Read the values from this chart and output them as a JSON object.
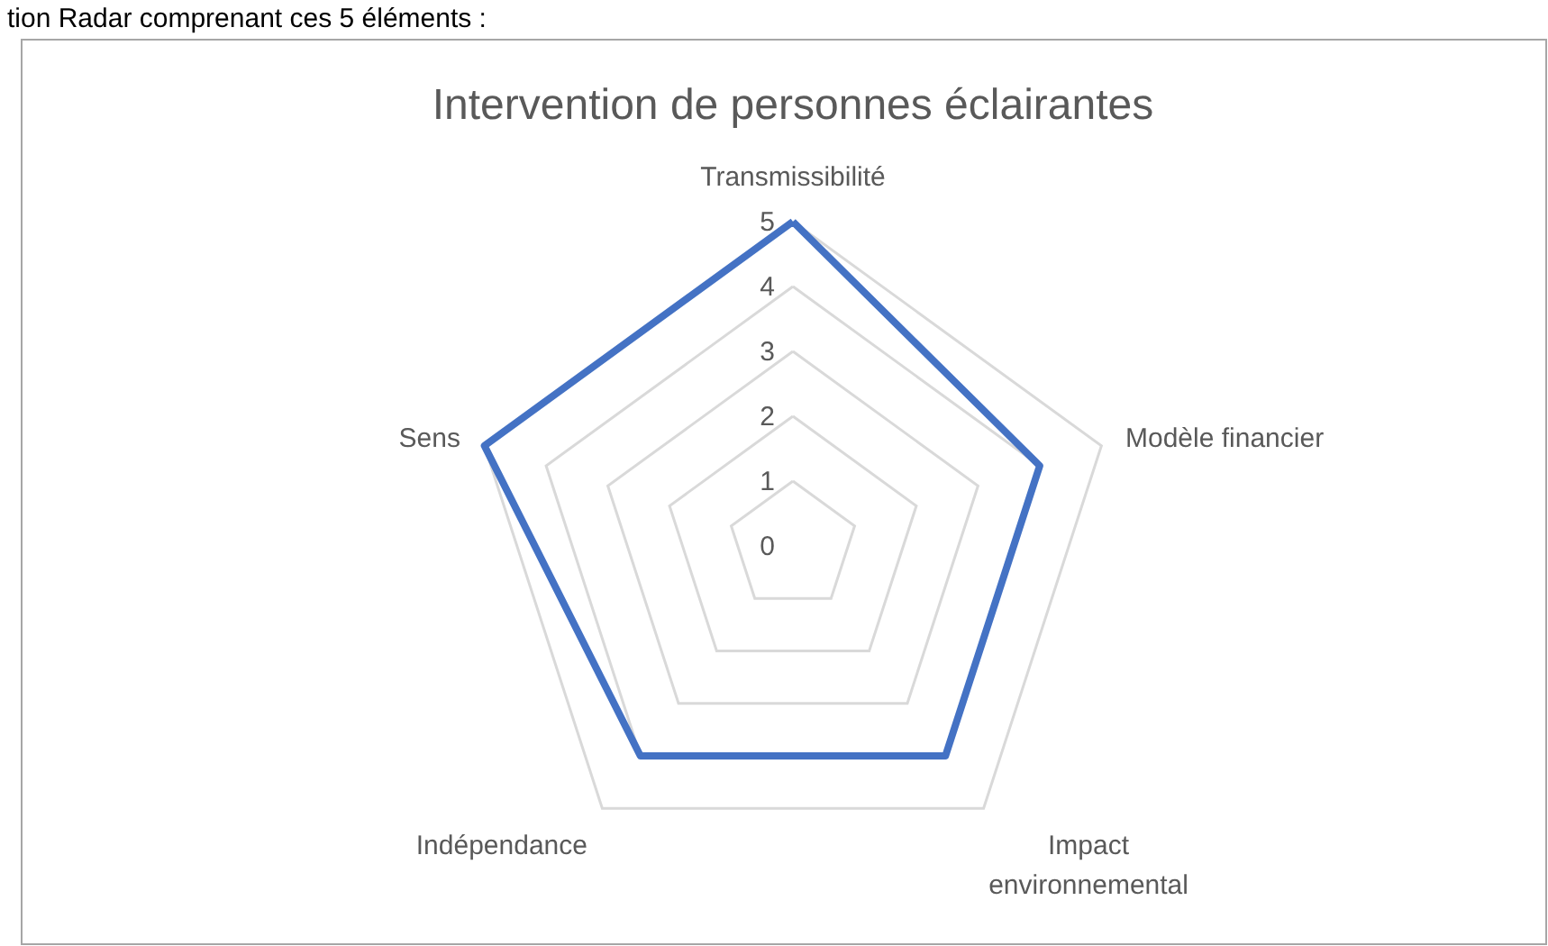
{
  "chart_data": {
    "type": "radar",
    "title": "Intervention de personnes éclairantes",
    "annotations": [
      "tion Radar comprenant ces 5 éléments :"
    ],
    "categories": [
      "Transmissibilité",
      "Modèle financier",
      "Impact environnemental",
      "Indépendance",
      "Sens"
    ],
    "series": [
      {
        "color": "#4472c4",
        "values": [
          5,
          4,
          4,
          4,
          5
        ]
      }
    ],
    "ylim": [
      0,
      5
    ],
    "yticks": [
      0,
      1,
      2,
      3,
      4,
      5
    ],
    "grid": true
  }
}
